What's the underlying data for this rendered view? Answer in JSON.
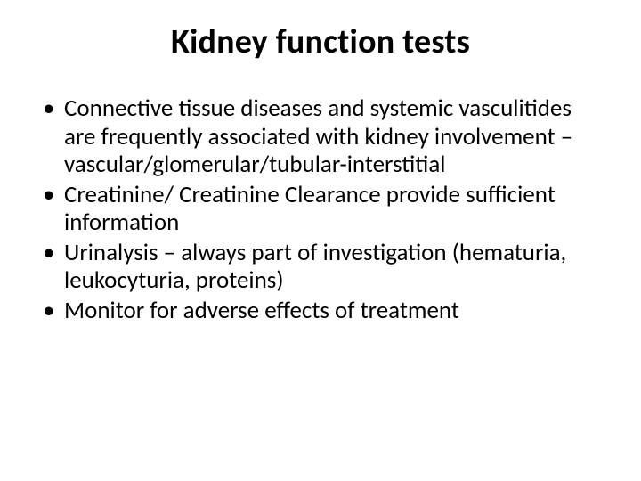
{
  "title": "Kidney function tests",
  "bullets": [
    "Connective tissue diseases and systemic vasculitides are frequently associated with kidney involvement – vascular/glomerular/tubular-interstitial",
    "Creatinine/ Creatinine Clearance provide sufficient information",
    "Urinalysis – always part of investigation (hematuria, leukocyturia, proteins)",
    "Monitor for adverse effects of treatment"
  ]
}
